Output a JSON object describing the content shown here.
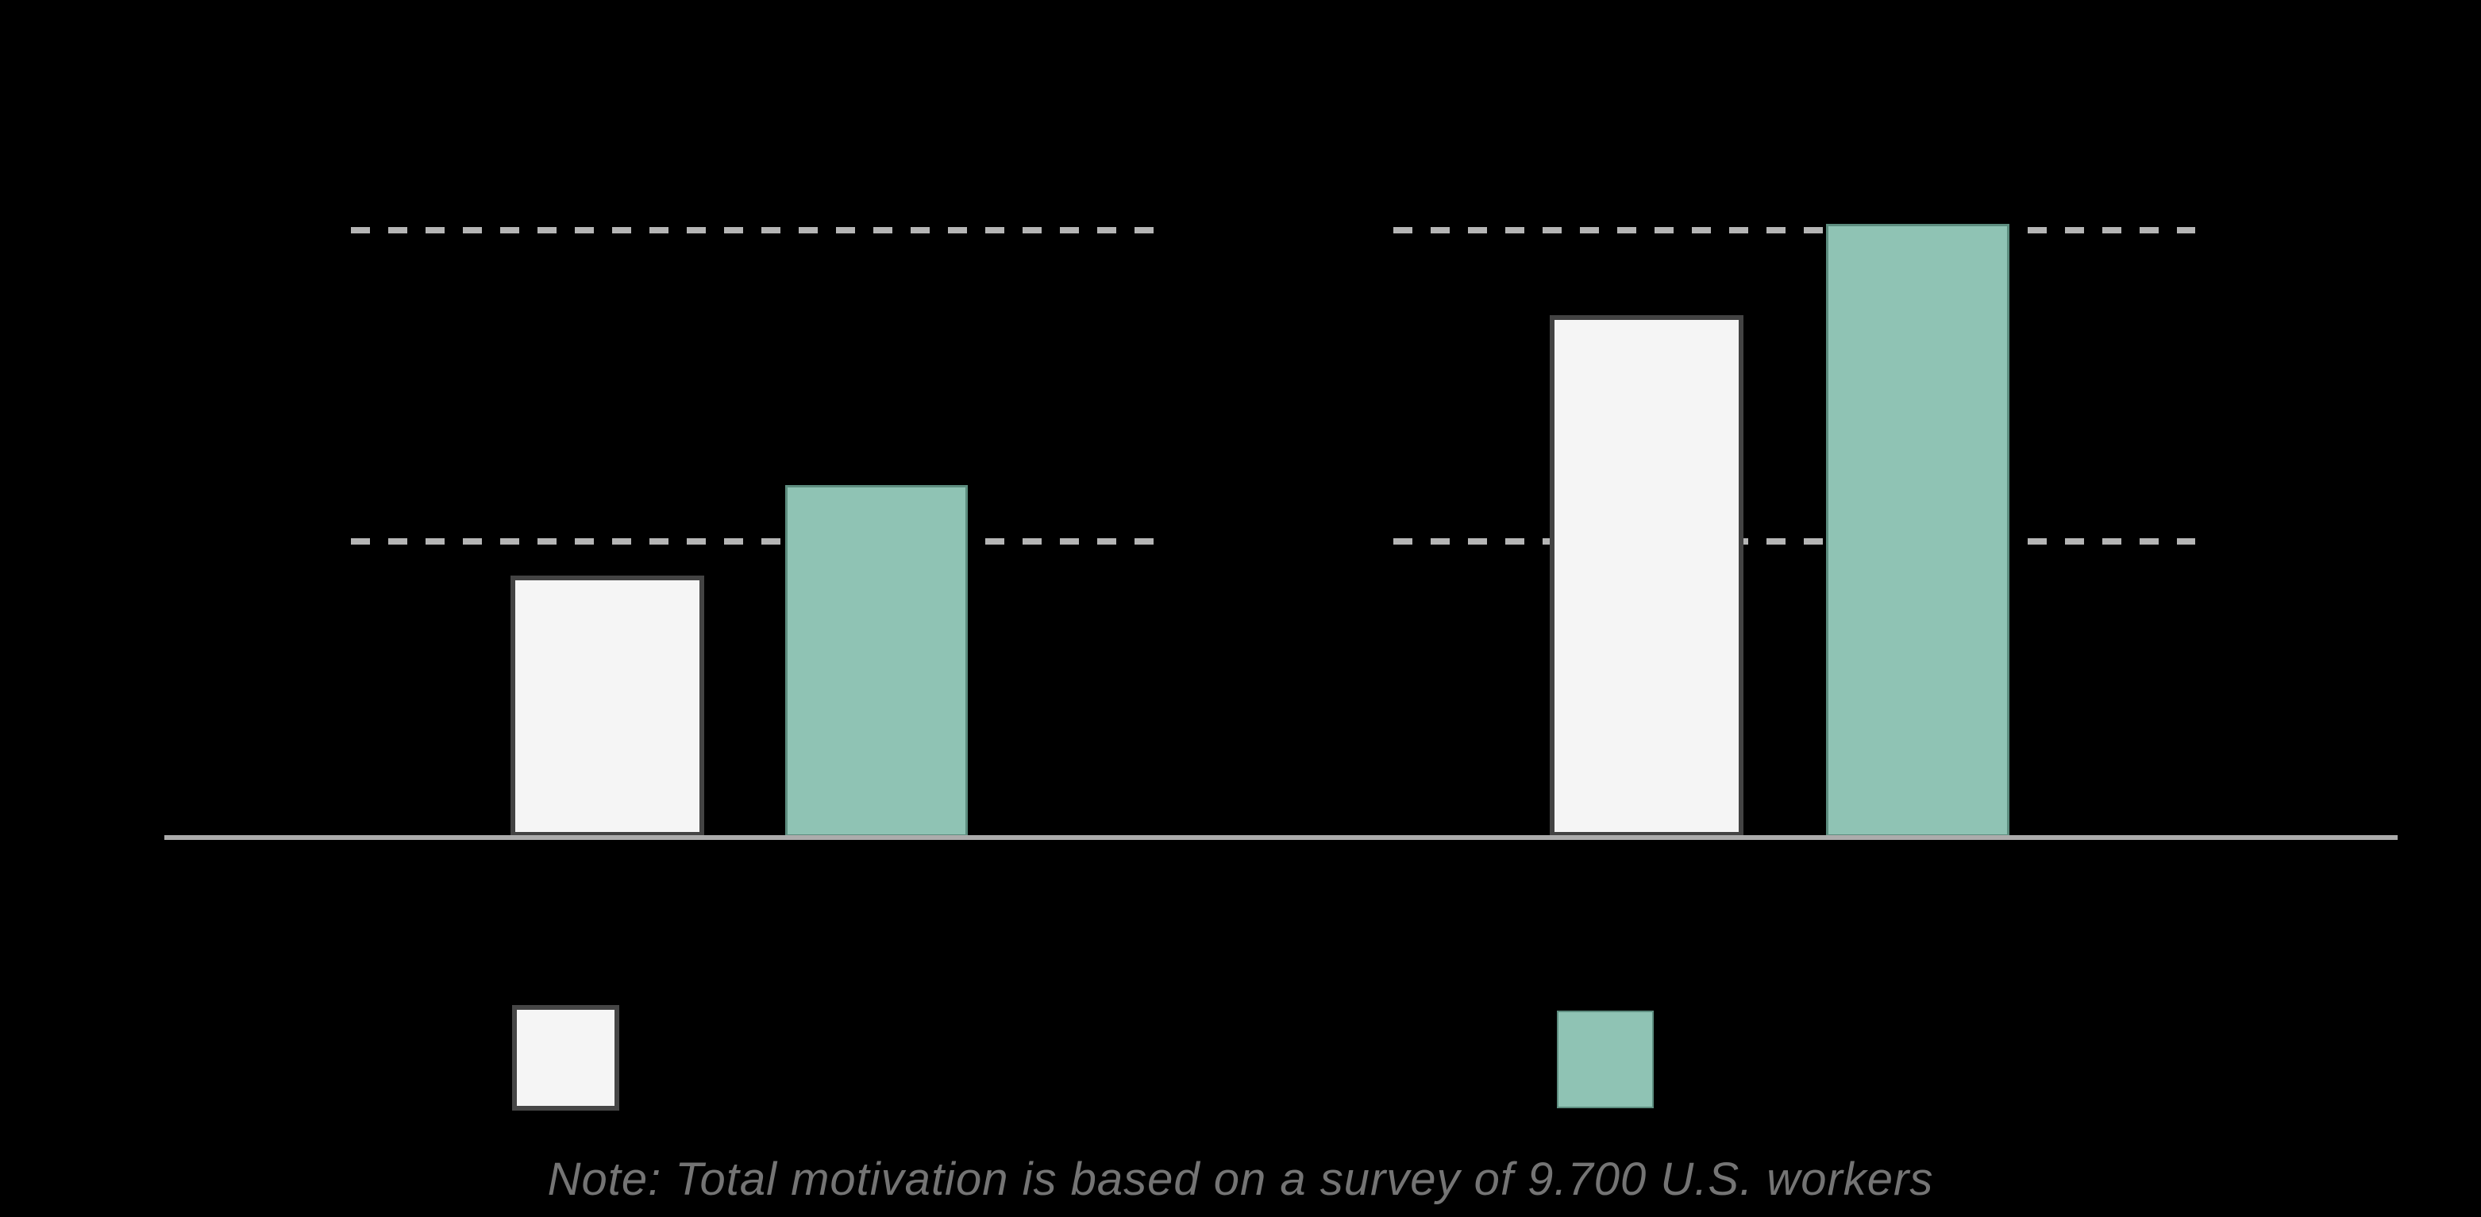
{
  "note": {
    "text": "Note: Total motivation is based on a survey of 9.700 U.S. workers"
  },
  "colors": {
    "background": "#000000",
    "bar_white_fill": "#f5f5f5",
    "bar_white_border": "#434343",
    "bar_teal_fill": "#8fc3b4",
    "bar_teal_border": "#5d8d7f",
    "gridline_dash": "#b5b5b5",
    "axis_line": "#acacac",
    "note_text": "#747474"
  },
  "legend": {
    "swatches": [
      {
        "name": "white-outlined-swatch",
        "fill": "#f5f5f5",
        "border": "#434343"
      },
      {
        "name": "teal-swatch",
        "fill": "#8fc3b4",
        "border": "#5d8d7f"
      }
    ]
  },
  "chart_data": {
    "type": "bar",
    "title": "",
    "xlabel": "",
    "ylabel": "",
    "categories": [
      "",
      ""
    ],
    "series": [
      {
        "name": "",
        "color": "#f5f5f5",
        "values": [
          43,
          86
        ]
      },
      {
        "name": "",
        "color": "#8fc3b4",
        "values": [
          58,
          101
        ]
      }
    ],
    "value_scale_note": "values estimated as percent of top dashed gridline; numeric axis labels are not visible in the image",
    "gridlines": [
      48.7,
      100
    ],
    "gridline_style": "dashed",
    "ylim": [
      0,
      100
    ],
    "legend_position": "bottom",
    "annotations": [
      "Note: Total motivation is based on a survey of 9.700 U.S. workers"
    ]
  }
}
